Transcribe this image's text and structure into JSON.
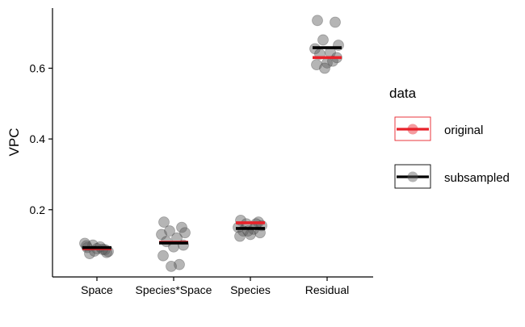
{
  "chart_data": {
    "type": "scatter",
    "ylabel": "VPC",
    "yticks": [
      "0.2",
      "0.4",
      "0.6"
    ],
    "categories": [
      "Space",
      "Species*Space",
      "Species",
      "Residual"
    ],
    "legend": {
      "title": "data",
      "placement": "right",
      "entries": [
        {
          "label": "original",
          "color": "#e8222a"
        },
        {
          "label": "subsampled",
          "color": "#000000"
        }
      ]
    },
    "ylim": [
      0.01,
      0.77
    ],
    "point_color": "#5a5a5a",
    "points": {
      "Space": [
        0.093,
        0.087,
        0.1,
        0.082,
        0.105,
        0.095,
        0.076,
        0.079,
        0.09,
        0.098,
        0.088,
        0.083
      ],
      "Species*Space": [
        0.165,
        0.15,
        0.14,
        0.135,
        0.13,
        0.12,
        0.11,
        0.1,
        0.095,
        0.07,
        0.045,
        0.04
      ],
      "Species": [
        0.17,
        0.165,
        0.16,
        0.155,
        0.15,
        0.145,
        0.14,
        0.135,
        0.13,
        0.125,
        0.16,
        0.14
      ],
      "Residual": [
        0.735,
        0.73,
        0.68,
        0.665,
        0.655,
        0.645,
        0.64,
        0.63,
        0.615,
        0.61,
        0.62,
        0.6
      ]
    },
    "means": {
      "original": [
        0.09,
        0.108,
        0.163,
        0.63
      ],
      "subsampled": [
        0.093,
        0.106,
        0.147,
        0.658
      ]
    }
  }
}
